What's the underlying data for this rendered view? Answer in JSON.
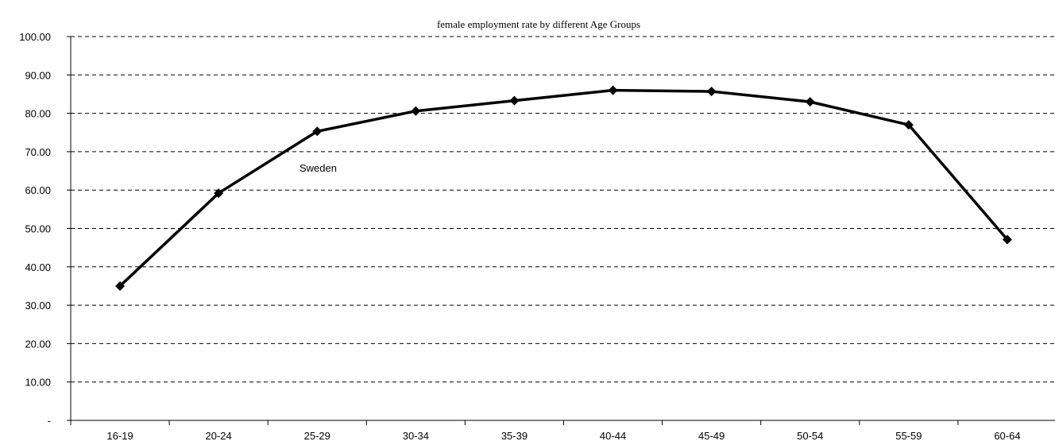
{
  "chart_data": {
    "type": "line",
    "title": "female employment rate by different Age Groups",
    "xlabel": "",
    "ylabel": "",
    "categories": [
      "16-19",
      "20-24",
      "25-29",
      "30-34",
      "35-39",
      "40-44",
      "45-49",
      "50-54",
      "55-59",
      "60-64"
    ],
    "y_ticks": [
      "-",
      "10.00",
      "20.00",
      "30.00",
      "40.00",
      "50.00",
      "60.00",
      "70.00",
      "80.00",
      "90.00",
      "100.00"
    ],
    "ylim": [
      0,
      100
    ],
    "grid": true,
    "series": [
      {
        "name": "Sweden",
        "values": [
          35.0,
          59.2,
          75.3,
          80.6,
          83.3,
          86.0,
          85.7,
          83.0,
          77.0,
          47.1
        ],
        "color": "#000000",
        "marker": "diamond"
      }
    ],
    "annotations": [
      {
        "text": "Sweden"
      }
    ]
  }
}
